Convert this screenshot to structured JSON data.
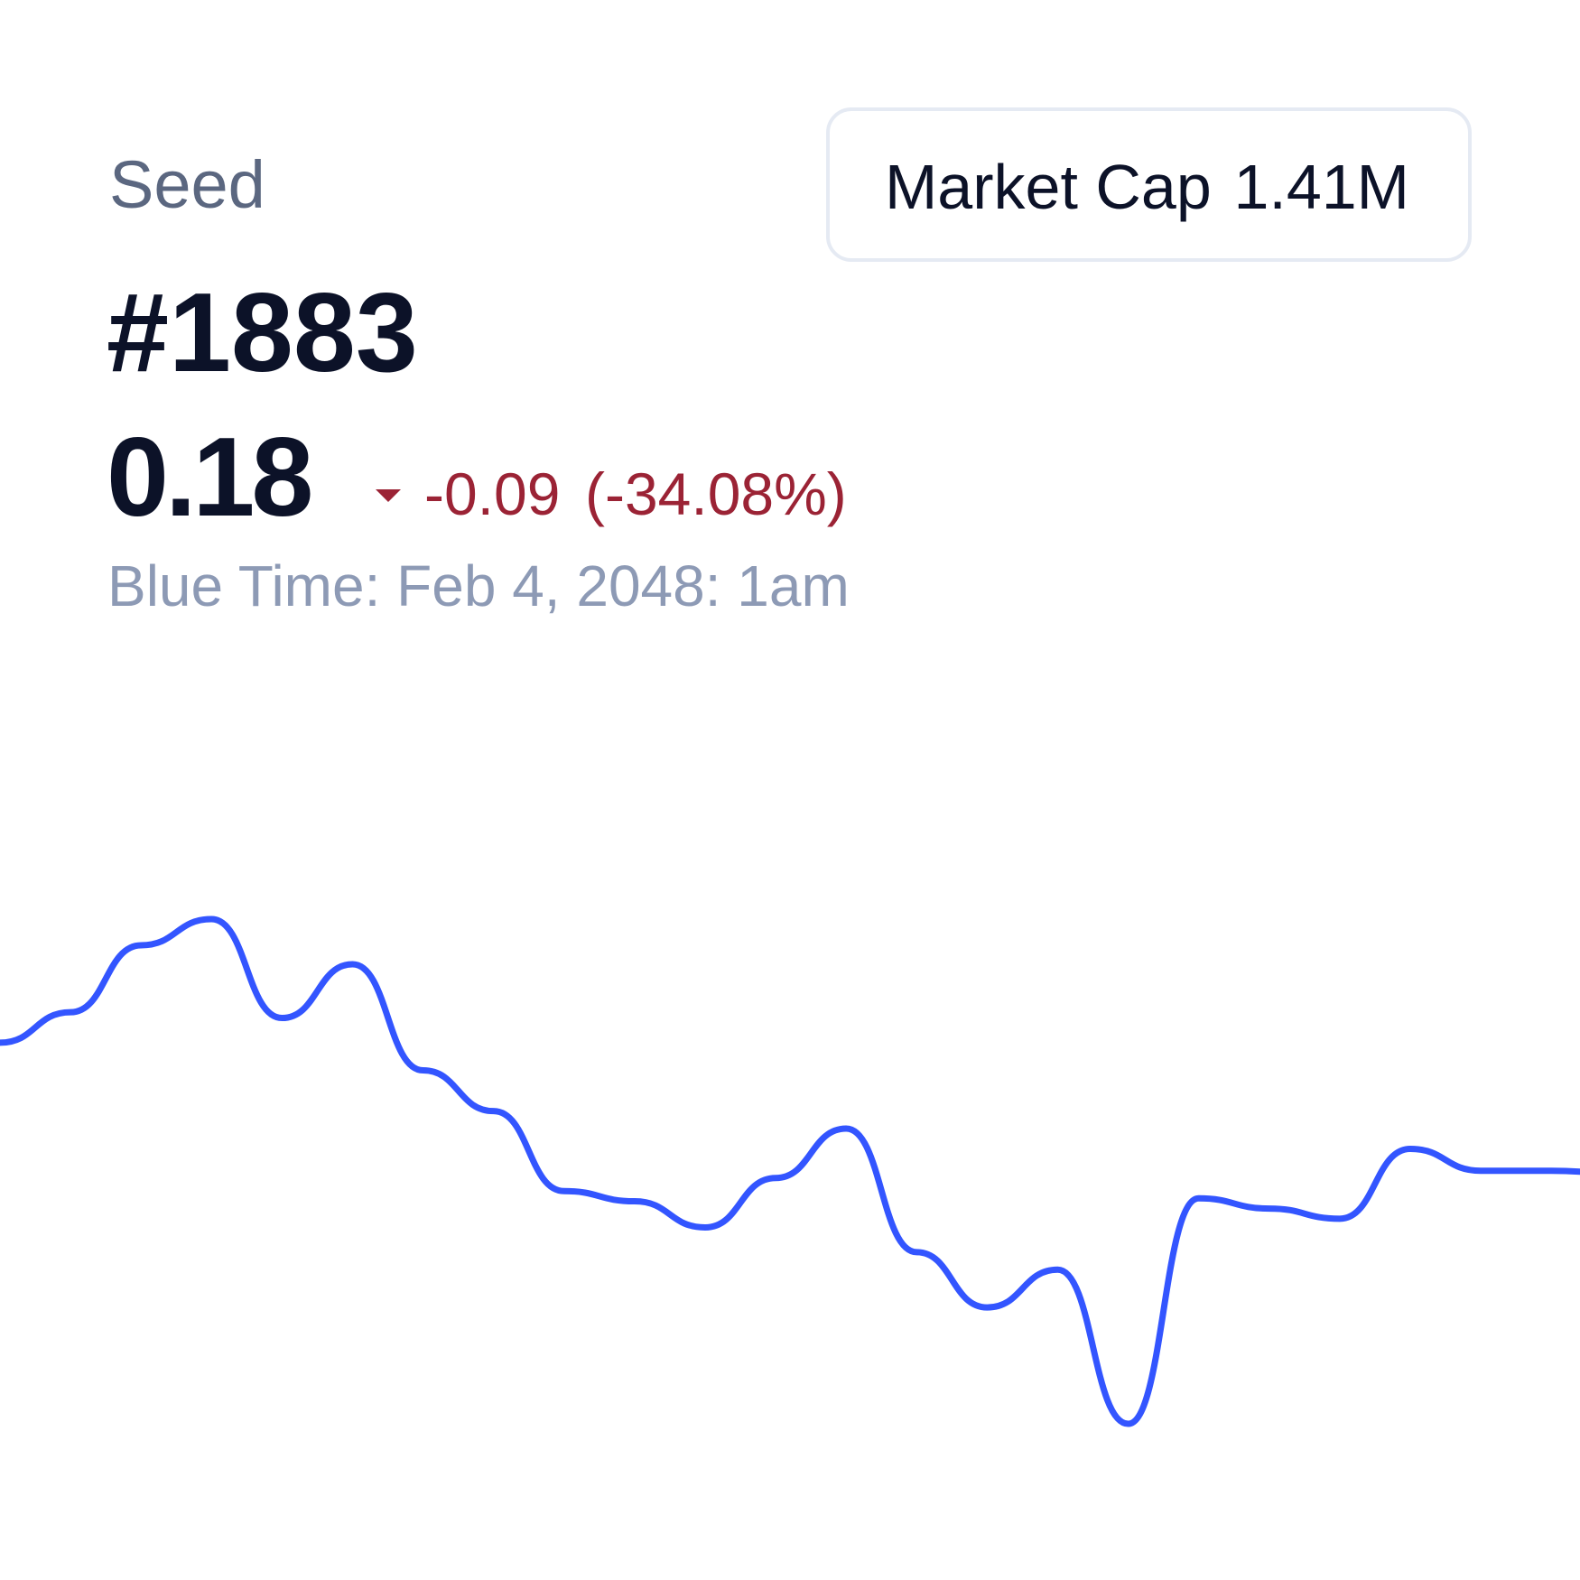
{
  "header": {
    "name": "Seed",
    "rank": "#1883",
    "price": "0.18",
    "change": "-0.09",
    "change_percent": "(-34.08%)",
    "time": "Blue Time: Feb 4, 2048: 1am"
  },
  "market_cap": {
    "label": "Market Cap",
    "value": "1.41M"
  },
  "chart_data": {
    "type": "line",
    "color": "#3355ff",
    "values": [
      0.27,
      0.291,
      0.337,
      0.355,
      0.287,
      0.324,
      0.251,
      0.223,
      0.168,
      0.161,
      0.143,
      0.177,
      0.211,
      0.126,
      0.088,
      0.114,
      0.008,
      0.163,
      0.156,
      0.149,
      0.197,
      0.182,
      0.182,
      0.18
    ]
  }
}
